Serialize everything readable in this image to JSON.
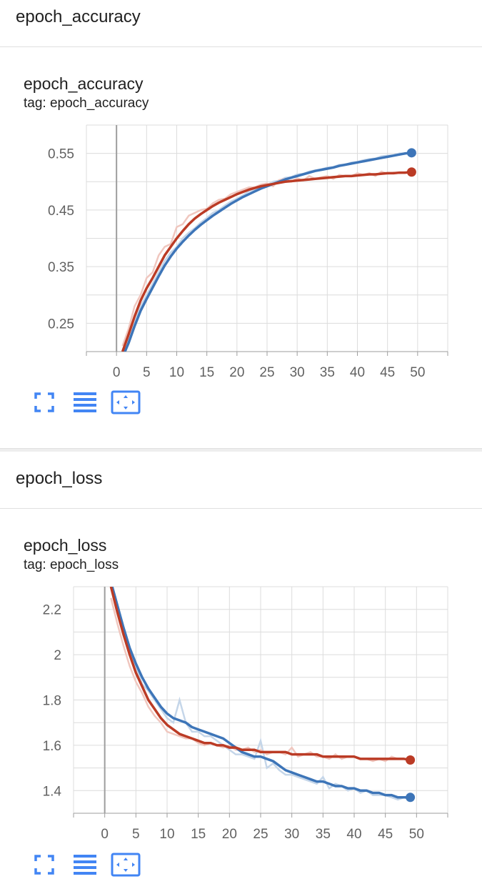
{
  "sections": [
    {
      "header": "epoch_accuracy",
      "card_title": "epoch_accuracy",
      "card_tag": "tag: epoch_accuracy"
    },
    {
      "header": "epoch_loss",
      "card_title": "epoch_loss",
      "card_tag": "tag: epoch_loss"
    }
  ],
  "colors": {
    "series_blue": "#3d75b8",
    "series_red": "#bb3b25",
    "raw_blue": "#c5d6e9",
    "raw_red": "#f0c7bf",
    "icon_blue": "#4285f4"
  },
  "icons": [
    "fullscreen-icon",
    "toggle-log-scale-icon",
    "fit-domain-icon"
  ],
  "chart_data": [
    {
      "type": "line",
      "title": "epoch_accuracy",
      "xlabel": "",
      "ylabel": "",
      "xlim": [
        -5,
        55
      ],
      "ylim": [
        0.2,
        0.6
      ],
      "xticks": [
        "0",
        "5",
        "10",
        "15",
        "20",
        "25",
        "30",
        "35",
        "40",
        "45",
        "50"
      ],
      "yticks": [
        "0.25",
        "0.35",
        "0.45",
        "0.55"
      ],
      "grid": true,
      "x": [
        1,
        2,
        3,
        4,
        5,
        6,
        7,
        8,
        9,
        10,
        11,
        12,
        13,
        14,
        15,
        16,
        17,
        18,
        19,
        20,
        21,
        22,
        23,
        24,
        25,
        26,
        27,
        28,
        29,
        30,
        31,
        32,
        33,
        34,
        35,
        36,
        37,
        38,
        39,
        40,
        41,
        42,
        43,
        44,
        45,
        46,
        47,
        48,
        49
      ],
      "series": [
        {
          "color": "#3d75b8",
          "values": [
            0.19,
            0.215,
            0.245,
            0.272,
            0.293,
            0.313,
            0.333,
            0.352,
            0.368,
            0.382,
            0.394,
            0.405,
            0.415,
            0.424,
            0.432,
            0.44,
            0.447,
            0.454,
            0.461,
            0.467,
            0.473,
            0.478,
            0.483,
            0.488,
            0.492,
            0.496,
            0.5,
            0.504,
            0.507,
            0.51,
            0.513,
            0.516,
            0.519,
            0.521,
            0.523,
            0.525,
            0.528,
            0.53,
            0.532,
            0.534,
            0.536,
            0.538,
            0.54,
            0.542,
            0.544,
            0.546,
            0.548,
            0.55,
            0.551
          ],
          "raw": [
            0.18,
            0.22,
            0.25,
            0.28,
            0.3,
            0.32,
            0.34,
            0.36,
            0.375,
            0.385,
            0.4,
            0.41,
            0.418,
            0.428,
            0.436,
            0.445,
            0.45,
            0.458,
            0.465,
            0.47,
            0.476,
            0.483,
            0.487,
            0.493,
            0.494,
            0.5,
            0.502,
            0.507,
            0.508,
            0.513,
            0.514,
            0.518,
            0.52,
            0.522,
            0.525,
            0.526,
            0.53,
            0.53,
            0.534,
            0.535,
            0.538,
            0.54,
            0.541,
            0.545,
            0.546,
            0.547,
            0.55,
            0.55,
            0.552
          ]
        },
        {
          "color": "#bb3b25",
          "values": [
            0.2,
            0.23,
            0.262,
            0.29,
            0.312,
            0.33,
            0.35,
            0.37,
            0.385,
            0.4,
            0.413,
            0.425,
            0.435,
            0.443,
            0.45,
            0.457,
            0.463,
            0.468,
            0.473,
            0.478,
            0.482,
            0.486,
            0.489,
            0.492,
            0.494,
            0.496,
            0.498,
            0.5,
            0.501,
            0.502,
            0.503,
            0.504,
            0.505,
            0.506,
            0.507,
            0.508,
            0.509,
            0.51,
            0.51,
            0.511,
            0.512,
            0.513,
            0.513,
            0.514,
            0.515,
            0.515,
            0.516,
            0.516,
            0.517
          ],
          "raw": [
            0.21,
            0.24,
            0.28,
            0.3,
            0.33,
            0.34,
            0.37,
            0.385,
            0.39,
            0.42,
            0.425,
            0.44,
            0.445,
            0.45,
            0.452,
            0.462,
            0.468,
            0.47,
            0.478,
            0.482,
            0.486,
            0.49,
            0.49,
            0.495,
            0.497,
            0.492,
            0.503,
            0.505,
            0.5,
            0.506,
            0.502,
            0.51,
            0.505,
            0.508,
            0.51,
            0.505,
            0.512,
            0.51,
            0.51,
            0.515,
            0.512,
            0.515,
            0.51,
            0.518,
            0.514,
            0.516,
            0.515,
            0.517,
            0.518
          ]
        }
      ]
    },
    {
      "type": "line",
      "title": "epoch_loss",
      "xlabel": "",
      "ylabel": "",
      "xlim": [
        -5,
        55
      ],
      "ylim": [
        1.3,
        2.3
      ],
      "xticks": [
        "0",
        "5",
        "10",
        "15",
        "20",
        "25",
        "30",
        "35",
        "40",
        "45",
        "50"
      ],
      "yticks": [
        "1.4",
        "1.6",
        "1.8",
        "2",
        "2.2"
      ],
      "grid": true,
      "x": [
        1,
        2,
        3,
        4,
        5,
        6,
        7,
        8,
        9,
        10,
        11,
        12,
        13,
        14,
        15,
        16,
        17,
        18,
        19,
        20,
        21,
        22,
        23,
        24,
        25,
        26,
        27,
        28,
        29,
        30,
        31,
        32,
        33,
        34,
        35,
        36,
        37,
        38,
        39,
        40,
        41,
        42,
        43,
        44,
        45,
        46,
        47,
        48,
        49
      ],
      "series": [
        {
          "color": "#3d75b8",
          "values": [
            2.32,
            2.22,
            2.12,
            2.03,
            1.96,
            1.9,
            1.85,
            1.81,
            1.77,
            1.74,
            1.72,
            1.71,
            1.7,
            1.68,
            1.67,
            1.66,
            1.65,
            1.64,
            1.63,
            1.61,
            1.59,
            1.57,
            1.56,
            1.55,
            1.55,
            1.54,
            1.53,
            1.51,
            1.49,
            1.48,
            1.47,
            1.46,
            1.45,
            1.44,
            1.44,
            1.43,
            1.42,
            1.42,
            1.41,
            1.41,
            1.4,
            1.4,
            1.39,
            1.39,
            1.38,
            1.38,
            1.37,
            1.37,
            1.37
          ],
          "raw": [
            2.3,
            2.2,
            2.1,
            2.0,
            1.95,
            1.87,
            1.84,
            1.8,
            1.76,
            1.72,
            1.7,
            1.8,
            1.7,
            1.66,
            1.66,
            1.64,
            1.64,
            1.62,
            1.6,
            1.58,
            1.56,
            1.56,
            1.55,
            1.54,
            1.62,
            1.5,
            1.52,
            1.49,
            1.47,
            1.47,
            1.46,
            1.45,
            1.44,
            1.43,
            1.46,
            1.41,
            1.43,
            1.42,
            1.4,
            1.41,
            1.39,
            1.4,
            1.38,
            1.38,
            1.38,
            1.37,
            1.36,
            1.37,
            1.36
          ]
        },
        {
          "color": "#bb3b25",
          "values": [
            2.3,
            2.19,
            2.09,
            2.0,
            1.92,
            1.86,
            1.8,
            1.76,
            1.72,
            1.69,
            1.67,
            1.65,
            1.64,
            1.63,
            1.62,
            1.61,
            1.61,
            1.6,
            1.6,
            1.59,
            1.59,
            1.58,
            1.58,
            1.58,
            1.57,
            1.57,
            1.57,
            1.57,
            1.57,
            1.56,
            1.56,
            1.56,
            1.56,
            1.56,
            1.55,
            1.55,
            1.55,
            1.55,
            1.55,
            1.55,
            1.54,
            1.54,
            1.54,
            1.54,
            1.54,
            1.54,
            1.54,
            1.54,
            1.535
          ],
          "raw": [
            2.25,
            2.14,
            2.04,
            1.95,
            1.88,
            1.83,
            1.77,
            1.73,
            1.7,
            1.66,
            1.65,
            1.64,
            1.63,
            1.63,
            1.61,
            1.6,
            1.61,
            1.6,
            1.59,
            1.6,
            1.58,
            1.58,
            1.59,
            1.57,
            1.58,
            1.56,
            1.57,
            1.57,
            1.56,
            1.59,
            1.55,
            1.56,
            1.57,
            1.55,
            1.55,
            1.54,
            1.56,
            1.54,
            1.55,
            1.55,
            1.54,
            1.54,
            1.53,
            1.54,
            1.53,
            1.55,
            1.54,
            1.54,
            1.53
          ]
        }
      ]
    }
  ]
}
